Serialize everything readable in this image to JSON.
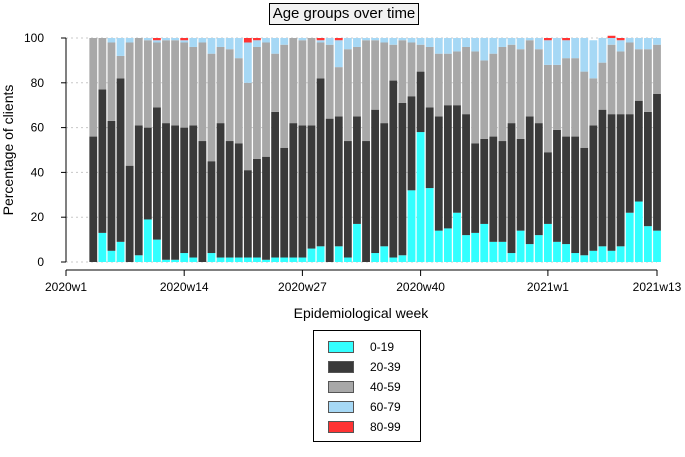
{
  "chart_data": {
    "type": "bar",
    "stacked": true,
    "title": "Age groups over time",
    "xlabel": "Epidemiological week",
    "ylabel": "Percentage of clients",
    "ylim": [
      0,
      100
    ],
    "yticks": [
      0,
      20,
      40,
      60,
      80,
      100
    ],
    "xtick_labels": [
      "2020w1",
      "2020w14",
      "2020w27",
      "2020w40",
      "2021w1",
      "2021w13"
    ],
    "x_range": [
      "2020w1",
      "2021w13"
    ],
    "first_bar_week": "2020w4",
    "grid": true,
    "legend_position": "bottom",
    "colors": {
      "0-19": "#33ffff",
      "20-39": "#3a3a3a",
      "40-59": "#a8a8a8",
      "60-79": "#a6d8f5",
      "80-99": "#ff3333"
    },
    "series": [
      {
        "name": "0-19",
        "values": [
          0,
          13,
          5,
          9,
          0,
          3,
          19,
          10,
          1,
          1,
          4,
          2,
          0,
          4,
          2,
          2,
          2,
          2,
          2,
          1,
          2,
          2,
          2,
          2,
          6,
          7,
          0,
          7,
          2,
          17,
          0,
          4,
          7,
          2,
          3,
          32,
          58,
          33,
          14,
          15,
          22,
          12,
          13,
          17,
          9,
          9,
          4,
          14,
          8,
          12,
          17,
          9,
          8,
          4,
          3,
          5,
          7,
          5,
          7,
          22,
          27,
          16,
          14
        ]
      },
      {
        "name": "20-39",
        "values": [
          56,
          64,
          58,
          73,
          43,
          58,
          41,
          59,
          61,
          60,
          56,
          59,
          54,
          41,
          60,
          52,
          51,
          39,
          44,
          46,
          65,
          49,
          60,
          59,
          55,
          75,
          64,
          58,
          52,
          48,
          54,
          64,
          55,
          79,
          68,
          42,
          27,
          36,
          51,
          55,
          48,
          54,
          40,
          38,
          47,
          45,
          58,
          41,
          57,
          50,
          32,
          50,
          48,
          52,
          48,
          56,
          61,
          61,
          59,
          44,
          45,
          51,
          61
        ]
      },
      {
        "name": "40-59",
        "values": [
          44,
          23,
          35,
          10,
          55,
          39,
          39,
          29,
          37,
          38,
          38,
          35,
          44,
          48,
          34,
          41,
          38,
          39,
          50,
          51,
          26,
          46,
          38,
          38,
          39,
          16,
          33,
          22,
          41,
          31,
          45,
          31,
          36,
          16,
          28,
          24,
          12,
          27,
          28,
          23,
          24,
          30,
          41,
          35,
          37,
          42,
          35,
          40,
          34,
          33,
          39,
          29,
          35,
          35,
          34,
          21,
          21,
          31,
          28,
          32,
          23,
          28,
          22
        ]
      },
      {
        "name": "60-79",
        "values": [
          0,
          0,
          2,
          8,
          2,
          0,
          1,
          1,
          1,
          1,
          1,
          4,
          2,
          7,
          4,
          5,
          9,
          18,
          3,
          2,
          7,
          3,
          0,
          1,
          0,
          1,
          3,
          12,
          5,
          4,
          1,
          1,
          2,
          3,
          1,
          2,
          3,
          4,
          7,
          7,
          6,
          4,
          6,
          10,
          7,
          4,
          3,
          5,
          1,
          5,
          11,
          12,
          8,
          9,
          15,
          17,
          11,
          3,
          5,
          2,
          5,
          5,
          3
        ]
      },
      {
        "name": "80-99",
        "values": [
          0,
          0,
          0,
          0,
          0,
          0,
          0,
          1,
          0,
          0,
          1,
          0,
          0,
          0,
          0,
          0,
          0,
          2,
          1,
          0,
          0,
          0,
          0,
          0,
          0,
          1,
          0,
          1,
          0,
          0,
          0,
          0,
          0,
          0,
          0,
          0,
          0,
          0,
          0,
          0,
          0,
          0,
          0,
          0,
          0,
          0,
          0,
          0,
          0,
          0,
          1,
          0,
          1,
          0,
          0,
          0,
          0,
          1,
          1,
          0,
          0,
          0,
          0
        ]
      }
    ]
  }
}
